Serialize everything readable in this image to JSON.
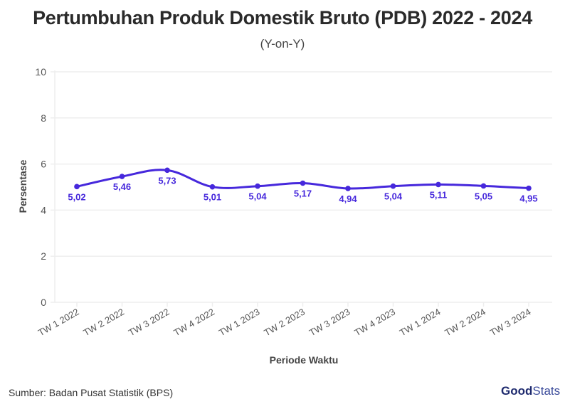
{
  "header": {
    "title": "Pertumbuhan Produk Domestik Bruto (PDB) 2022 - 2024",
    "subtitle": "(Y-on-Y)"
  },
  "footer": {
    "source": "Sumber: Badan Pusat Statistik (BPS)",
    "logo_bold": "Good",
    "logo_light": "Stats"
  },
  "colors": {
    "line": "#4628dc",
    "grid": "#eeeeee"
  },
  "chart_data": {
    "type": "line",
    "title": "Pertumbuhan Produk Domestik Bruto (PDB) 2022 - 2024",
    "subtitle": "(Y-on-Y)",
    "xlabel": "Periode Waktu",
    "ylabel": "Persentase",
    "ylim": [
      0,
      10
    ],
    "yticks": [
      0,
      2,
      4,
      6,
      8,
      10
    ],
    "grid": true,
    "legend": "none",
    "categories": [
      "TW 1 2022",
      "TW 2 2022",
      "TW 3 2022",
      "TW 4 2022",
      "TW 1 2023",
      "TW 2 2023",
      "TW 3 2023",
      "TW 4 2023",
      "TW 1 2024",
      "TW 2 2024",
      "TW 3 2024"
    ],
    "values": [
      5.02,
      5.46,
      5.73,
      5.01,
      5.04,
      5.17,
      4.94,
      5.04,
      5.11,
      5.05,
      4.95
    ],
    "labels": [
      "5,02",
      "5,46",
      "5,73",
      "5,01",
      "5,04",
      "5,17",
      "4,94",
      "5,04",
      "5,11",
      "5,05",
      "4,95"
    ]
  }
}
